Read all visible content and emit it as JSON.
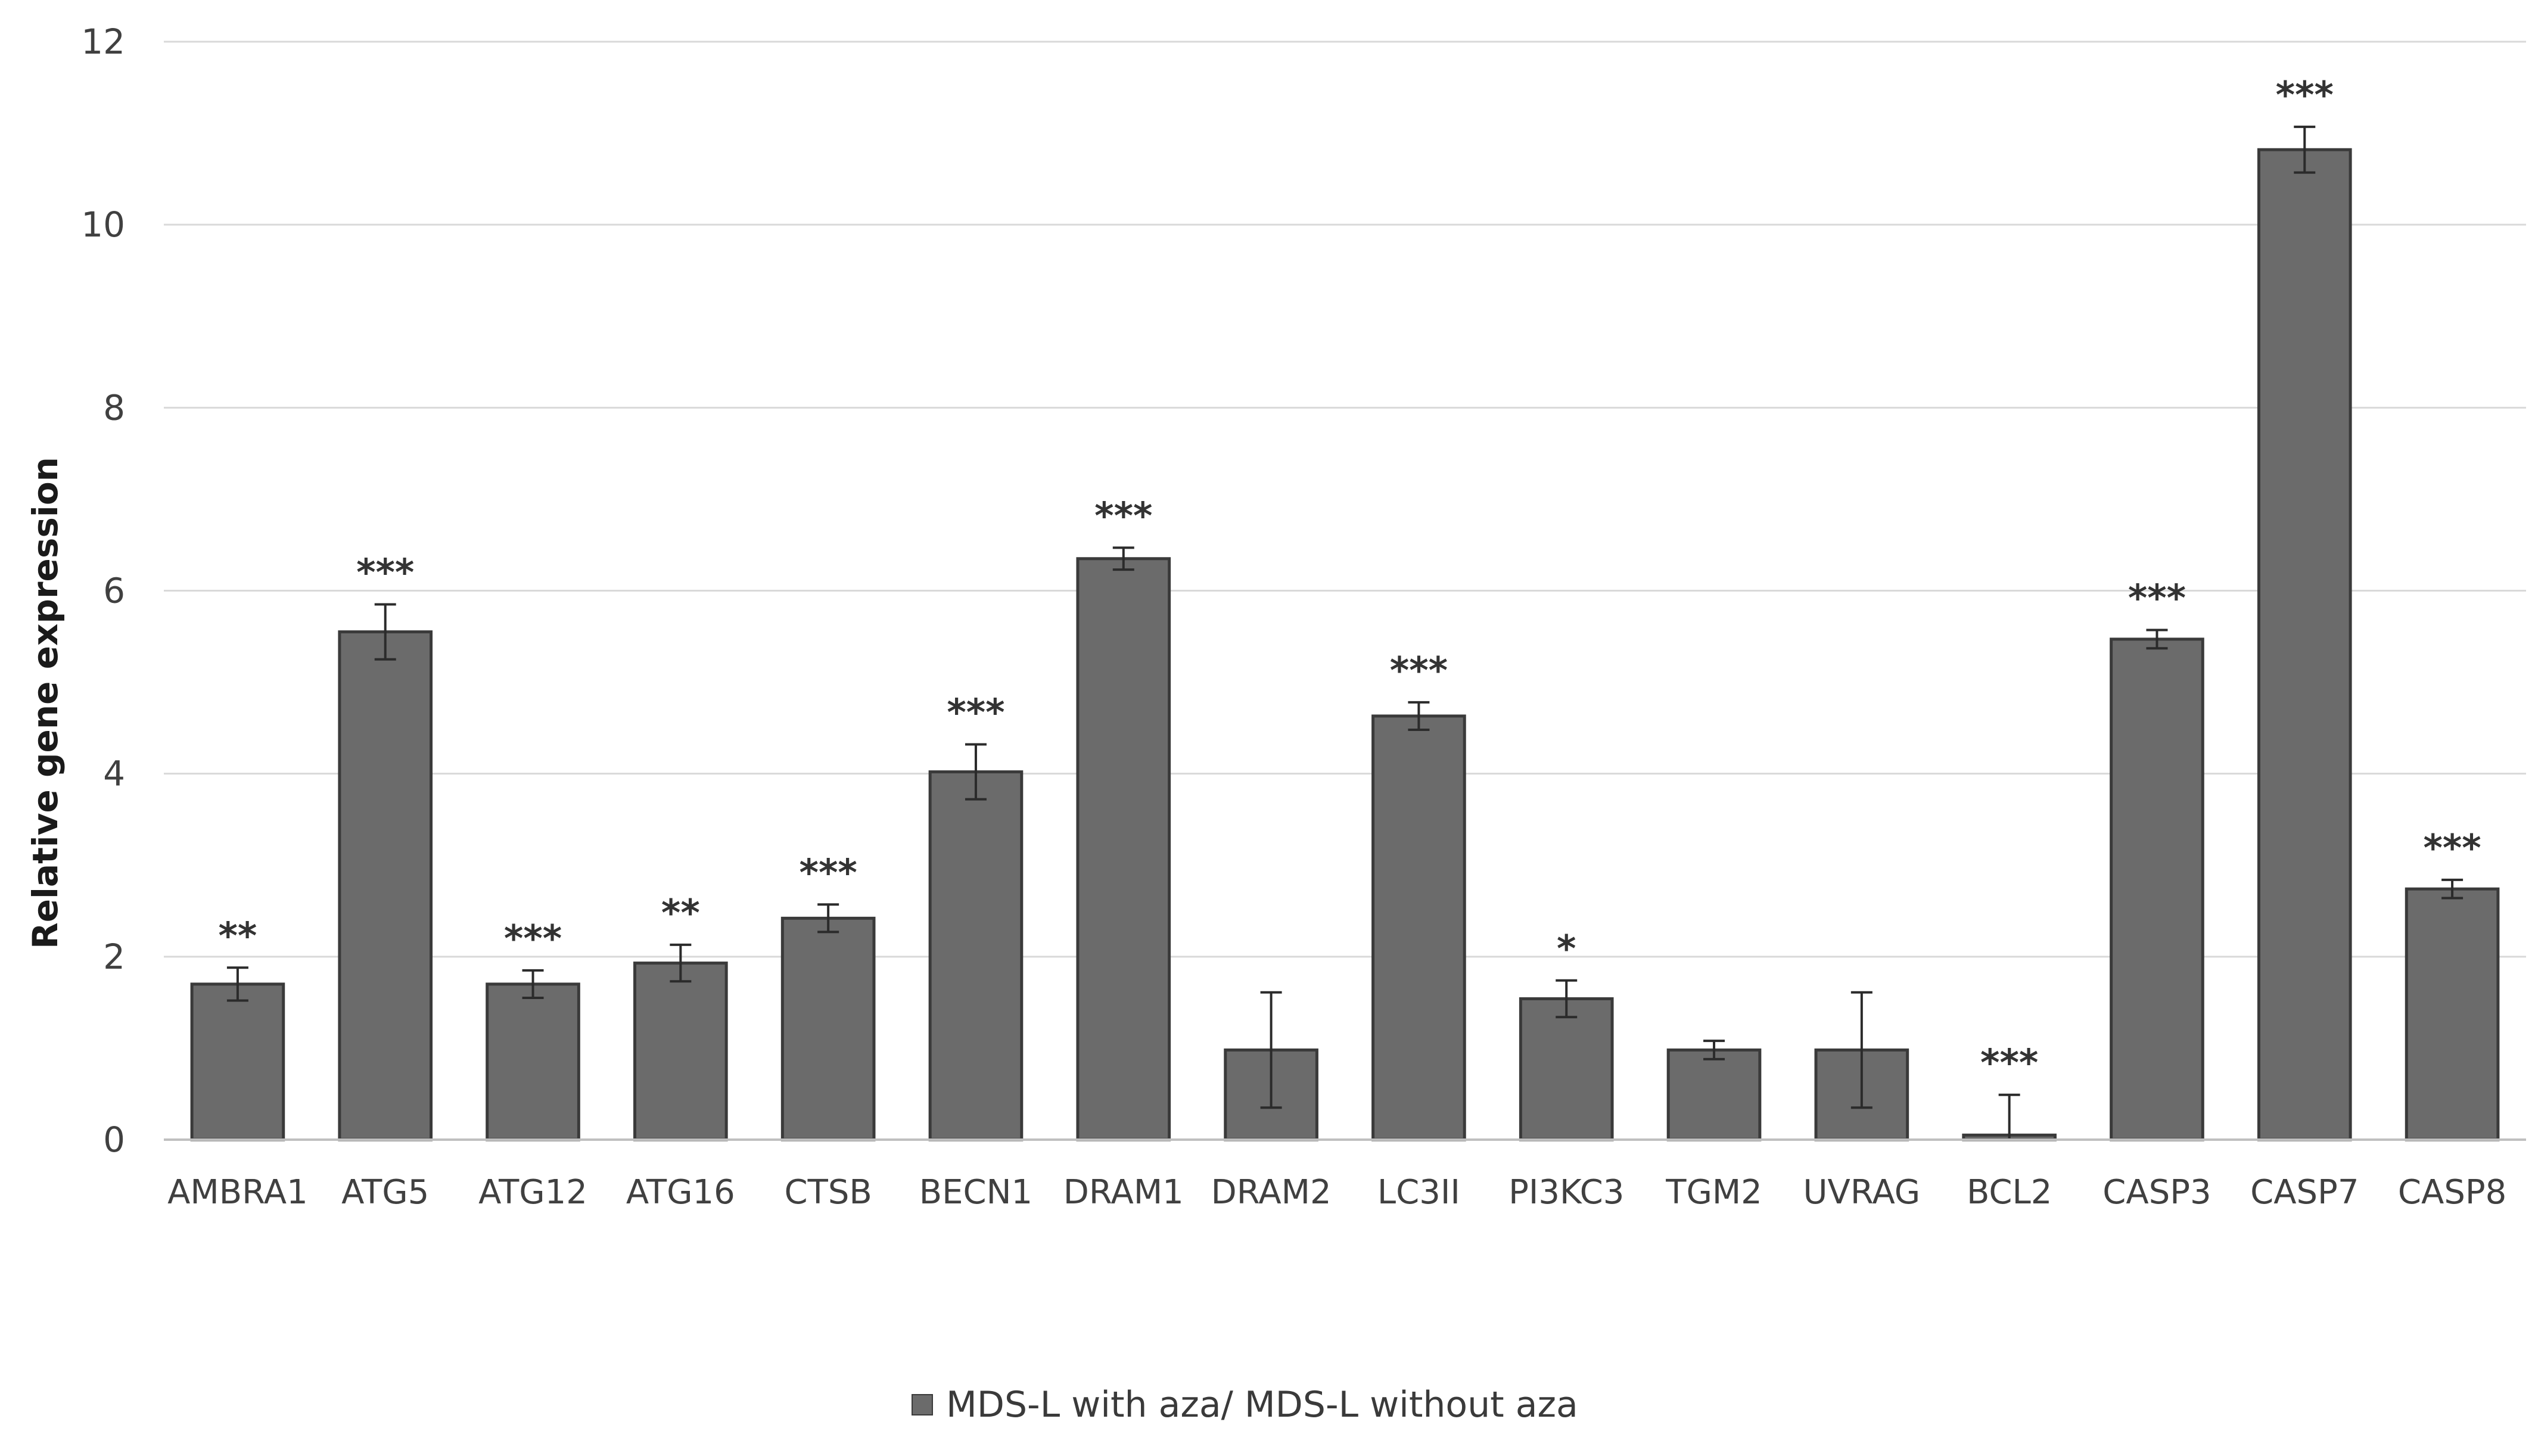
{
  "chart_data": {
    "type": "bar",
    "title": "",
    "xlabel": "",
    "ylabel": "Relative gene expression",
    "ylim": [
      0,
      12
    ],
    "yticks": [
      0,
      2,
      4,
      6,
      8,
      10,
      12
    ],
    "grid": true,
    "legend_position": "bottom",
    "categories": [
      "AMBRA1",
      "ATG5",
      "ATG12",
      "ATG16",
      "CTSB",
      "BECN1",
      "DRAM1",
      "DRAM2",
      "LC3II",
      "PI3KC3",
      "TGM2",
      "UVRAG",
      "BCL2",
      "CASP3",
      "CASP7",
      "CASP8"
    ],
    "series": [
      {
        "name": "MDS-L with aza/ MDS-L without aza",
        "color": "#6b6b6b",
        "values": [
          1.7,
          5.55,
          1.7,
          1.93,
          2.42,
          4.02,
          6.35,
          0.98,
          4.63,
          1.54,
          0.98,
          0.98,
          0.05,
          5.47,
          10.82,
          2.74
        ],
        "errors": [
          0.18,
          0.3,
          0.15,
          0.2,
          0.15,
          0.3,
          0.12,
          0.63,
          0.15,
          0.2,
          0.1,
          0.63,
          0.44,
          0.1,
          0.25,
          0.1
        ],
        "significance": [
          "**",
          "***",
          "***",
          "**",
          "***",
          "***",
          "***",
          "",
          "***",
          "*",
          "",
          "",
          "***",
          "***",
          "***",
          "***"
        ]
      }
    ],
    "colors": {
      "bar": "#6b6b6b",
      "bar_edge": "#3a3a3a",
      "grid": "#d9d9d9",
      "text": "#404040"
    }
  }
}
